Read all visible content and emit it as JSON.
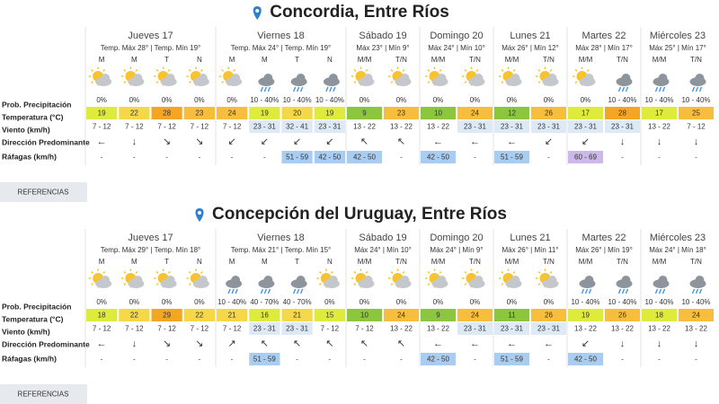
{
  "row_labels": [
    "Prob. Precipitación",
    "Temperatura (°C)",
    "Viento (km/h)",
    "Dirección Predominante",
    "Ráfagas (km/h)"
  ],
  "locations": [
    {
      "title": "Concordia, Entre Ríos",
      "button": "REFERENCIAS",
      "days": [
        {
          "name": "Jueves 17",
          "temps": "Temp. Máx 28° | Temp. Mín 19°",
          "periods": [
            "M",
            "M",
            "T",
            "N"
          ],
          "precipitation": [
            "0%",
            "0%",
            "0%",
            "0%"
          ],
          "temperature": [
            19,
            22,
            28,
            23
          ],
          "wind": [
            "7 - 12",
            "7 - 12",
            "7 - 12",
            "7 - 12"
          ],
          "direction": [
            "←",
            "↓",
            "↘",
            "↘"
          ],
          "gusts": [
            "-",
            "-",
            "-",
            "-"
          ]
        },
        {
          "name": "Viernes 18",
          "temps": "Temp. Máx 24° | Temp. Mín 19°",
          "periods": [
            "M",
            "M",
            "T",
            "N"
          ],
          "precipitation": [
            "0%",
            "10 - 40%",
            "10 - 40%",
            "10 - 40%"
          ],
          "temperature": [
            24,
            19,
            20,
            19
          ],
          "wind": [
            "7 - 12",
            "23 - 31",
            "32 - 41",
            "23 - 31"
          ],
          "direction": [
            "↙",
            "↙",
            "↙",
            "↙"
          ],
          "gusts": [
            "-",
            "-",
            "51 - 59",
            "42 - 50"
          ]
        },
        {
          "name": "Sábado 19",
          "temps": "Máx 23° | Mín 9°",
          "periods": [
            "M/M",
            "T/N"
          ],
          "precipitation": [
            "0%",
            "0%"
          ],
          "temperature": [
            9,
            23
          ],
          "wind": [
            "13 - 22",
            "13 - 22"
          ],
          "direction": [
            "↖",
            "↖"
          ],
          "gusts": [
            "42 - 50",
            "-"
          ]
        },
        {
          "name": "Domingo 20",
          "temps": "Máx 24° | Mín 10°",
          "periods": [
            "M/M",
            "T/N"
          ],
          "precipitation": [
            "0%",
            "0%"
          ],
          "temperature": [
            10,
            24
          ],
          "wind": [
            "13 - 22",
            "23 - 31"
          ],
          "direction": [
            "←",
            "←"
          ],
          "gusts": [
            "42 - 50",
            "-"
          ]
        },
        {
          "name": "Lunes 21",
          "temps": "Máx 26° | Mín 12°",
          "periods": [
            "M/M",
            "T/N"
          ],
          "precipitation": [
            "0%",
            "0%"
          ],
          "temperature": [
            12,
            26
          ],
          "wind": [
            "23 - 31",
            "23 - 31"
          ],
          "direction": [
            "←",
            "↙"
          ],
          "gusts": [
            "51 - 59",
            "-"
          ]
        },
        {
          "name": "Martes 22",
          "temps": "Máx 28° | Mín 17°",
          "periods": [
            "M/M",
            "T/N"
          ],
          "precipitation": [
            "0%",
            "10 - 40%"
          ],
          "temperature": [
            17,
            28
          ],
          "wind": [
            "23 - 31",
            "23 - 31"
          ],
          "direction": [
            "↙",
            "↓"
          ],
          "gusts": [
            "60 - 69",
            "-"
          ]
        },
        {
          "name": "Miércoles 23",
          "temps": "Máx 25° | Mín 17°",
          "periods": [
            "M/M",
            "T/N"
          ],
          "precipitation": [
            "10 - 40%",
            "10 - 40%"
          ],
          "temperature": [
            17,
            25
          ],
          "wind": [
            "13 - 22",
            "7 - 12"
          ],
          "direction": [
            "↓",
            "↓"
          ],
          "gusts": [
            "-",
            "-"
          ]
        }
      ]
    },
    {
      "title": "Concepción del Uruguay, Entre Ríos",
      "button": "REFERENCIAS",
      "days": [
        {
          "name": "Jueves 17",
          "temps": "Temp. Máx 29° | Temp. Mín 18°",
          "periods": [
            "M",
            "M",
            "T",
            "N"
          ],
          "precipitation": [
            "0%",
            "0%",
            "0%",
            "0%"
          ],
          "temperature": [
            18,
            22,
            29,
            22
          ],
          "wind": [
            "7 - 12",
            "7 - 12",
            "7 - 12",
            "7 - 12"
          ],
          "direction": [
            "←",
            "↓",
            "↘",
            "↘"
          ],
          "gusts": [
            "-",
            "-",
            "-",
            "-"
          ]
        },
        {
          "name": "Viernes 18",
          "temps": "Temp. Máx 21° | Temp. Mín 15°",
          "periods": [
            "M",
            "M",
            "T",
            "N"
          ],
          "precipitation": [
            "10 - 40%",
            "40 - 70%",
            "40 - 70%",
            "0%"
          ],
          "temperature": [
            21,
            16,
            21,
            15
          ],
          "wind": [
            "7 - 12",
            "23 - 31",
            "23 - 31",
            "7 - 12"
          ],
          "direction": [
            "↗",
            "↖",
            "↖",
            "↖"
          ],
          "gusts": [
            "-",
            "51 - 59",
            "-",
            "-"
          ]
        },
        {
          "name": "Sábado 19",
          "temps": "Máx 24° | Mín 10°",
          "periods": [
            "M/M",
            "T/N"
          ],
          "precipitation": [
            "0%",
            "0%"
          ],
          "temperature": [
            10,
            24
          ],
          "wind": [
            "7 - 12",
            "13 - 22"
          ],
          "direction": [
            "↖",
            "↖"
          ],
          "gusts": [
            "-",
            "-"
          ]
        },
        {
          "name": "Domingo 20",
          "temps": "Máx 24° | Mín 9°",
          "periods": [
            "M/M",
            "T/N"
          ],
          "precipitation": [
            "0%",
            "0%"
          ],
          "temperature": [
            9,
            24
          ],
          "wind": [
            "13 - 22",
            "23 - 31"
          ],
          "direction": [
            "←",
            "←"
          ],
          "gusts": [
            "42 - 50",
            "-"
          ]
        },
        {
          "name": "Lunes 21",
          "temps": "Máx 26° | Mín 11°",
          "periods": [
            "M/M",
            "T/N"
          ],
          "precipitation": [
            "0%",
            "0%"
          ],
          "temperature": [
            11,
            26
          ],
          "wind": [
            "23 - 31",
            "23 - 31"
          ],
          "direction": [
            "←",
            "←"
          ],
          "gusts": [
            "51 - 59",
            "-"
          ]
        },
        {
          "name": "Martes 22",
          "temps": "Máx 26° | Mín 19°",
          "periods": [
            "M/M",
            "T/N"
          ],
          "precipitation": [
            "10 - 40%",
            "10 - 40%"
          ],
          "temperature": [
            19,
            26
          ],
          "wind": [
            "13 - 22",
            "13 - 22"
          ],
          "direction": [
            "↙",
            "↓"
          ],
          "gusts": [
            "42 - 50",
            "-"
          ]
        },
        {
          "name": "Miércoles 23",
          "temps": "Máx 24° | Mín 18°",
          "periods": [
            "M/M",
            "T/N"
          ],
          "precipitation": [
            "10 - 40%",
            "10 - 40%"
          ],
          "temperature": [
            18,
            24
          ],
          "wind": [
            "13 - 22",
            "13 - 22"
          ],
          "direction": [
            "↓",
            "↓"
          ],
          "gusts": [
            "-",
            "-"
          ]
        }
      ]
    }
  ]
}
